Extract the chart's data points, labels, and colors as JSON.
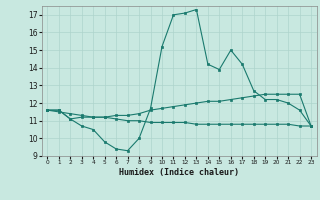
{
  "xlabel": "Humidex (Indice chaleur)",
  "x": [
    0,
    1,
    2,
    3,
    4,
    5,
    6,
    7,
    8,
    9,
    10,
    11,
    12,
    13,
    14,
    15,
    16,
    17,
    18,
    19,
    20,
    21,
    22,
    23
  ],
  "line1": [
    11.6,
    11.6,
    11.1,
    10.7,
    10.5,
    9.8,
    9.4,
    9.3,
    10.0,
    11.7,
    15.2,
    17.0,
    17.1,
    17.3,
    14.2,
    13.9,
    15.0,
    14.2,
    12.7,
    12.2,
    12.2,
    12.0,
    11.6,
    10.7
  ],
  "line2": [
    11.6,
    11.6,
    11.1,
    11.2,
    11.2,
    11.2,
    11.3,
    11.3,
    11.4,
    11.6,
    11.7,
    11.8,
    11.9,
    12.0,
    12.1,
    12.1,
    12.2,
    12.3,
    12.4,
    12.5,
    12.5,
    12.5,
    12.5,
    10.7
  ],
  "line3": [
    11.6,
    11.5,
    11.4,
    11.3,
    11.2,
    11.2,
    11.1,
    11.0,
    11.0,
    10.9,
    10.9,
    10.9,
    10.9,
    10.8,
    10.8,
    10.8,
    10.8,
    10.8,
    10.8,
    10.8,
    10.8,
    10.8,
    10.7,
    10.7
  ],
  "line_color": "#1a7a6e",
  "bg_color": "#c8e8e0",
  "grid_color": "#aed4cc",
  "ylim": [
    9,
    17.5
  ],
  "yticks": [
    9,
    10,
    11,
    12,
    13,
    14,
    15,
    16,
    17
  ],
  "xlim": [
    -0.5,
    23.5
  ],
  "xticks": [
    0,
    1,
    2,
    3,
    4,
    5,
    6,
    7,
    8,
    9,
    10,
    11,
    12,
    13,
    14,
    15,
    16,
    17,
    18,
    19,
    20,
    21,
    22,
    23
  ]
}
